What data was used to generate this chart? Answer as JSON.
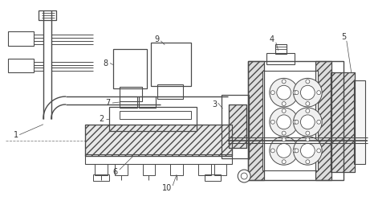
{
  "bg_color": "#ffffff",
  "lc": "#4a4a4a",
  "label_color": "#333333",
  "figsize": [
    4.61,
    2.6
  ],
  "dpi": 100
}
